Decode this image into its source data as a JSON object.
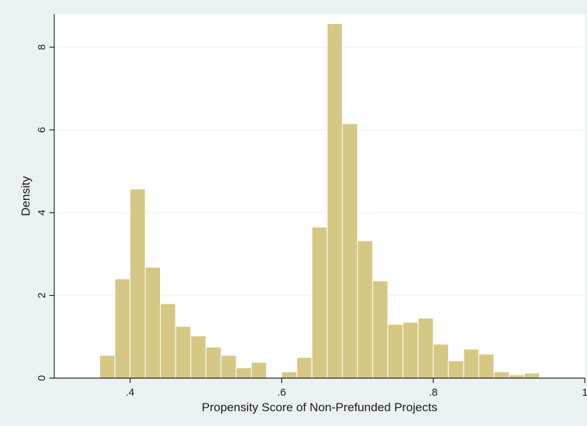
{
  "chart_data": {
    "type": "bar",
    "title": "",
    "xlabel": "Propensity Score of Non-Prefunded Projects",
    "ylabel": "Density",
    "xlim": [
      0.3,
      1.0
    ],
    "ylim": [
      0,
      8.8
    ],
    "x_ticks": [
      {
        "value": 0.4,
        "label": ".4"
      },
      {
        "value": 0.6,
        "label": ".6"
      },
      {
        "value": 0.8,
        "label": ".8"
      },
      {
        "value": 1.0,
        "label": "1"
      }
    ],
    "y_ticks": [
      {
        "value": 0,
        "label": "0"
      },
      {
        "value": 2,
        "label": "2"
      },
      {
        "value": 4,
        "label": "4"
      },
      {
        "value": 6,
        "label": "6"
      },
      {
        "value": 8,
        "label": "8"
      }
    ],
    "grid": "horizontal",
    "bin_width": 0.02,
    "bins": [
      {
        "x0": 0.36,
        "x1": 0.38,
        "value": 0.55
      },
      {
        "x0": 0.38,
        "x1": 0.4,
        "value": 2.4
      },
      {
        "x0": 0.4,
        "x1": 0.42,
        "value": 4.57
      },
      {
        "x0": 0.42,
        "x1": 0.44,
        "value": 2.68
      },
      {
        "x0": 0.44,
        "x1": 0.46,
        "value": 1.8
      },
      {
        "x0": 0.46,
        "x1": 0.48,
        "value": 1.25
      },
      {
        "x0": 0.48,
        "x1": 0.5,
        "value": 1.02
      },
      {
        "x0": 0.5,
        "x1": 0.52,
        "value": 0.75
      },
      {
        "x0": 0.52,
        "x1": 0.54,
        "value": 0.55
      },
      {
        "x0": 0.54,
        "x1": 0.56,
        "value": 0.25
      },
      {
        "x0": 0.56,
        "x1": 0.58,
        "value": 0.38
      },
      {
        "x0": 0.58,
        "x1": 0.6,
        "value": 0.0
      },
      {
        "x0": 0.6,
        "x1": 0.62,
        "value": 0.15
      },
      {
        "x0": 0.62,
        "x1": 0.64,
        "value": 0.5
      },
      {
        "x0": 0.64,
        "x1": 0.66,
        "value": 3.65
      },
      {
        "x0": 0.66,
        "x1": 0.68,
        "value": 8.57
      },
      {
        "x0": 0.68,
        "x1": 0.7,
        "value": 6.15
      },
      {
        "x0": 0.7,
        "x1": 0.72,
        "value": 3.32
      },
      {
        "x0": 0.72,
        "x1": 0.74,
        "value": 2.35
      },
      {
        "x0": 0.74,
        "x1": 0.76,
        "value": 1.3
      },
      {
        "x0": 0.76,
        "x1": 0.78,
        "value": 1.35
      },
      {
        "x0": 0.78,
        "x1": 0.8,
        "value": 1.45
      },
      {
        "x0": 0.8,
        "x1": 0.82,
        "value": 0.82
      },
      {
        "x0": 0.82,
        "x1": 0.84,
        "value": 0.42
      },
      {
        "x0": 0.84,
        "x1": 0.86,
        "value": 0.7
      },
      {
        "x0": 0.86,
        "x1": 0.88,
        "value": 0.58
      },
      {
        "x0": 0.88,
        "x1": 0.9,
        "value": 0.15
      },
      {
        "x0": 0.9,
        "x1": 0.92,
        "value": 0.08
      },
      {
        "x0": 0.92,
        "x1": 0.94,
        "value": 0.12
      }
    ],
    "colors": {
      "background": "#eaf2f3",
      "plot_area": "#ffffff",
      "bar_fill": "#d5c885",
      "bar_stroke": "#ffffff",
      "axis": "#1a1a1a",
      "grid": "#eaf2f3"
    }
  }
}
